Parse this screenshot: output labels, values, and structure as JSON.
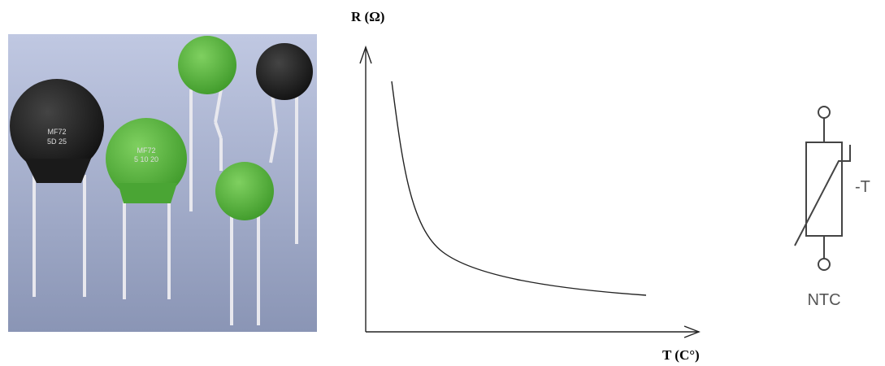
{
  "photo": {
    "labels": [
      "MF72",
      "5D 25",
      "MF72",
      "5 10 20"
    ]
  },
  "graph": {
    "y_axis_label": "R (Ω)",
    "x_axis_label": "T (C°)"
  },
  "symbol": {
    "coefficient": "-T",
    "name": "NTC"
  }
}
